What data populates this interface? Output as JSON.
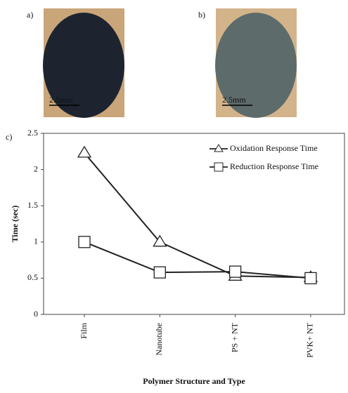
{
  "panels": [
    {
      "label": "a)",
      "scale": "2.5mm"
    },
    {
      "label": "b)",
      "scale": "2.5mm"
    }
  ],
  "chart_data": {
    "type": "line",
    "label": "c)",
    "x_label": "Polymer Structure and Type",
    "y_label": "Time (sec)",
    "categories": [
      "Film",
      "Nanotube",
      "PS + NT",
      "PVK+ NT"
    ],
    "series": [
      {
        "name": "Oxidation Response Time",
        "color": "#222222",
        "marker": "triangle",
        "values": [
          2.23,
          1.0,
          0.53,
          0.51
        ]
      },
      {
        "name": "Reduction Response Time",
        "color": "#222222",
        "marker": "square",
        "values": [
          1.0,
          0.58,
          0.59,
          0.5
        ]
      }
    ],
    "ylim": [
      0,
      2.5
    ],
    "yticks": [
      0,
      0.5,
      1,
      1.5,
      2,
      2.5
    ],
    "grid": false,
    "legend": "upper right"
  }
}
